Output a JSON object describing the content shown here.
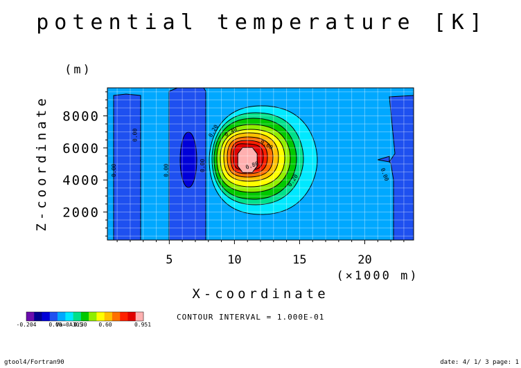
{
  "chart_data": {
    "type": "heatmap",
    "title": "potential temperature [K]",
    "xlabel": "X-coordinate",
    "ylabel": "Z-coordinate",
    "x_unit": "(×1000 m)",
    "y_unit": "(m)",
    "xlim": [
      0.25,
      23.75
    ],
    "ylim": [
      250,
      9750
    ],
    "x_ticks": [
      5,
      10,
      15,
      20
    ],
    "y_ticks": [
      2000,
      4000,
      6000,
      8000
    ],
    "x_tick_labels": [
      "5",
      "10",
      "15",
      "20"
    ],
    "y_tick_labels": [
      "2000",
      "4000",
      "6000",
      "8000"
    ],
    "bubble": {
      "center_x": 11,
      "center_z": 5250,
      "peak": 0.951
    },
    "contour_labels": [
      {
        "text": "0.20",
        "x": 8.5,
        "z": 7000,
        "angle": -60
      },
      {
        "text": "0.40",
        "x": 9.8,
        "z": 6900,
        "angle": -30
      },
      {
        "text": "0.60",
        "x": 12.4,
        "z": 6100,
        "angle": 30
      },
      {
        "text": "0.80",
        "x": 11.4,
        "z": 4800,
        "angle": -20
      },
      {
        "text": "0.20",
        "x": 14.6,
        "z": 3900,
        "angle": -55
      },
      {
        "text": "0.00",
        "x": 2.5,
        "z": 6800,
        "angle": -90
      },
      {
        "text": "0.00",
        "x": 0.9,
        "z": 4600,
        "angle": -90
      },
      {
        "text": "0.00",
        "x": 4.9,
        "z": 4600,
        "angle": -90
      },
      {
        "text": "0.00",
        "x": 7.7,
        "z": 4900,
        "angle": -90
      },
      {
        "text": "0.00",
        "x": 21.4,
        "z": 4300,
        "angle": 70
      }
    ],
    "colorbar": {
      "colors": [
        "#6a0dad",
        "#000090",
        "#0000d8",
        "#1e50f0",
        "#00a8ff",
        "#00e8ff",
        "#00e08a",
        "#00c800",
        "#90ee00",
        "#ffff00",
        "#ffc000",
        "#ff7000",
        "#ff2000",
        "#e00000",
        "#ffb0b0"
      ],
      "tick_labels": [
        "-0.204",
        "0.00",
        "0.30",
        "0.60",
        "0.951"
      ]
    },
    "colorbar_overlap_text": "Va=0A305",
    "contour_interval_text": "CONTOUR INTERVAL = 1.000E-01"
  },
  "footer": {
    "left": "gtool4/Fortran90",
    "right": "date: 4/ 1/ 3 page: 1"
  }
}
